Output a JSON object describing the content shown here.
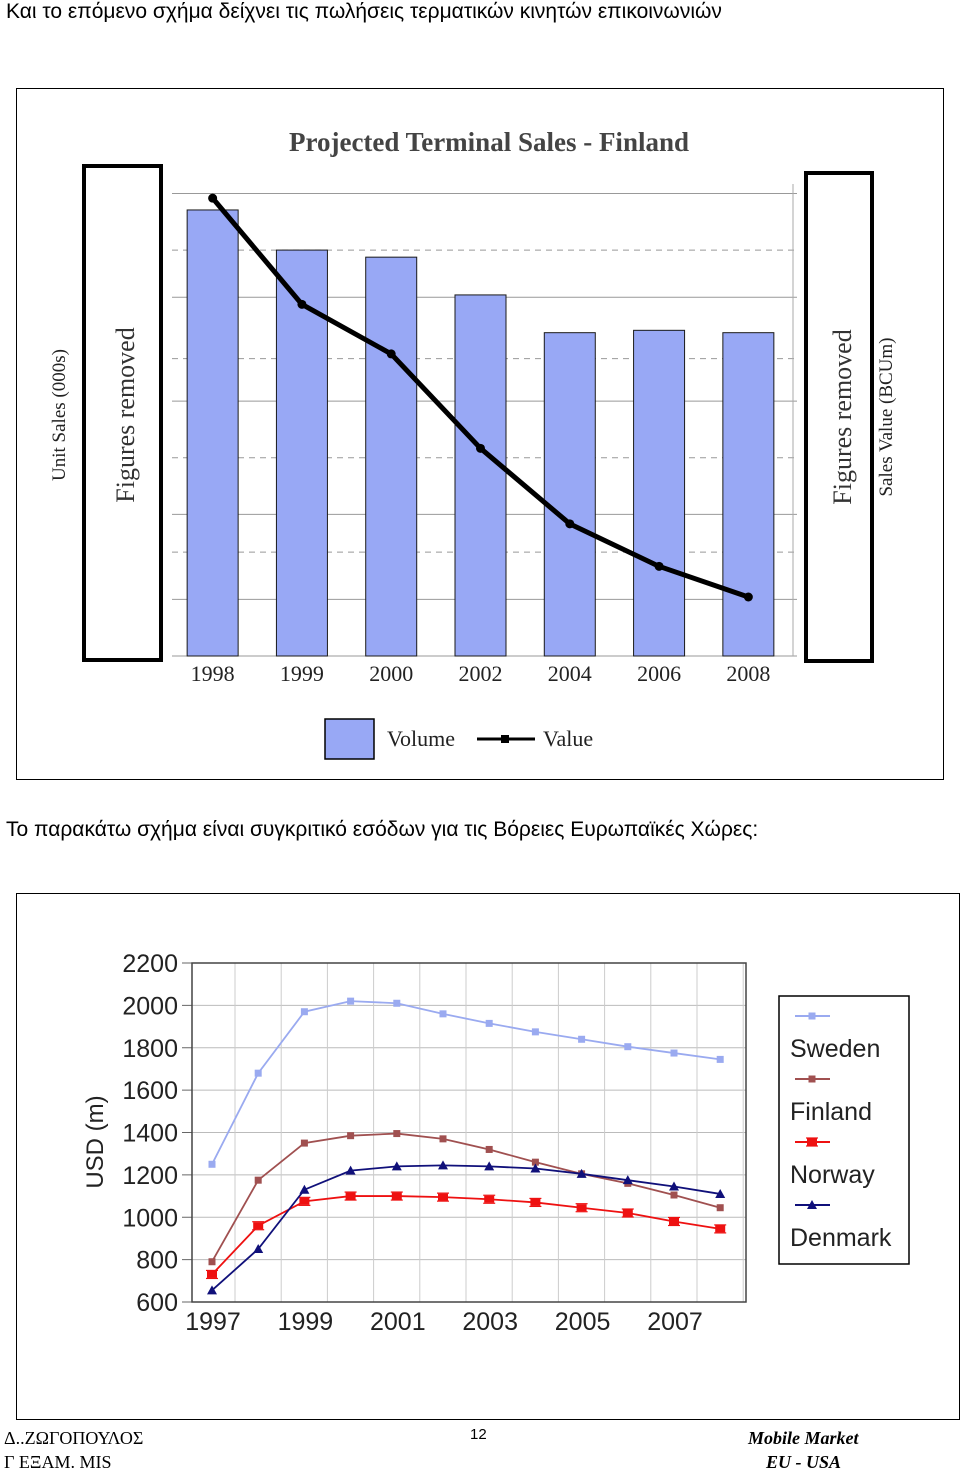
{
  "page": {
    "heading_top": "Και το επόμενο σχήμα δείχνει τις πωλήσεις τερματικών κινητών επικοινωνιών",
    "heading_middle": "Το παρακάτω σχήμα είναι συγκριτικό εσόδων για τις Βόρειες Ευρωπαϊκές Χώρες:",
    "footer": {
      "author": "Δ..ΖΩΓΟΠΟΥΛΟΣ",
      "course": "Γ ΕΞΑΜ. MIS",
      "page_number": "12",
      "title": "Mobile Market",
      "subtitle": "EU - USA"
    }
  },
  "chart_data": [
    {
      "type": "bar",
      "title": "Projected Terminal Sales - Finland",
      "categories": [
        "1998",
        "1999",
        "2000",
        "2002",
        "2004",
        "2006",
        "2008"
      ],
      "series": [
        {
          "name": "Volume",
          "values": [
            0.945,
            0.86,
            0.845,
            0.765,
            0.685,
            0.69,
            0.685
          ]
        },
        {
          "name": "Value",
          "values": [
            0.97,
            0.745,
            0.64,
            0.44,
            0.28,
            0.19,
            0.125
          ]
        }
      ],
      "ylabel": "Unit Sales (000s)",
      "y2label": "Sales Value (BCUm)",
      "ylim": [
        0,
        1
      ],
      "axis_note_left": "Figures removed",
      "axis_note_right": "Figures removed",
      "legend_position": "bottom",
      "colors": {
        "Volume": "#98a8f5",
        "Value": "#000000"
      }
    },
    {
      "type": "line",
      "title": "",
      "x": [
        "1997",
        "1998",
        "1999",
        "2000",
        "2001",
        "2002",
        "2003",
        "2004",
        "2005",
        "2006",
        "2007",
        "2008"
      ],
      "xticks": [
        "1997",
        "1999",
        "2001",
        "2003",
        "2005",
        "2007"
      ],
      "yticks": [
        "600",
        "800",
        "1000",
        "1200",
        "1400",
        "1600",
        "1800",
        "2000",
        "2200"
      ],
      "ylabel": "USD (m)",
      "ylim": [
        600,
        2200
      ],
      "legend_position": "right",
      "series": [
        {
          "name": "Sweden",
          "color": "#9aaaf0",
          "marker": "square",
          "values": [
            1250,
            1680,
            1970,
            2020,
            2010,
            1960,
            1915,
            1875,
            1840,
            1805,
            1775,
            1745
          ]
        },
        {
          "name": "Finland",
          "color": "#a05050",
          "marker": "square",
          "values": [
            790,
            1175,
            1350,
            1385,
            1395,
            1370,
            1320,
            1260,
            1205,
            1160,
            1105,
            1045
          ]
        },
        {
          "name": "Norway",
          "color": "#ee1111",
          "marker": "bar",
          "values": [
            730,
            960,
            1075,
            1100,
            1100,
            1095,
            1085,
            1070,
            1045,
            1020,
            980,
            945
          ]
        },
        {
          "name": "Denmark",
          "color": "#10107a",
          "marker": "triangle",
          "values": [
            655,
            850,
            1130,
            1220,
            1240,
            1245,
            1240,
            1230,
            1205,
            1175,
            1145,
            1110
          ]
        }
      ]
    }
  ]
}
